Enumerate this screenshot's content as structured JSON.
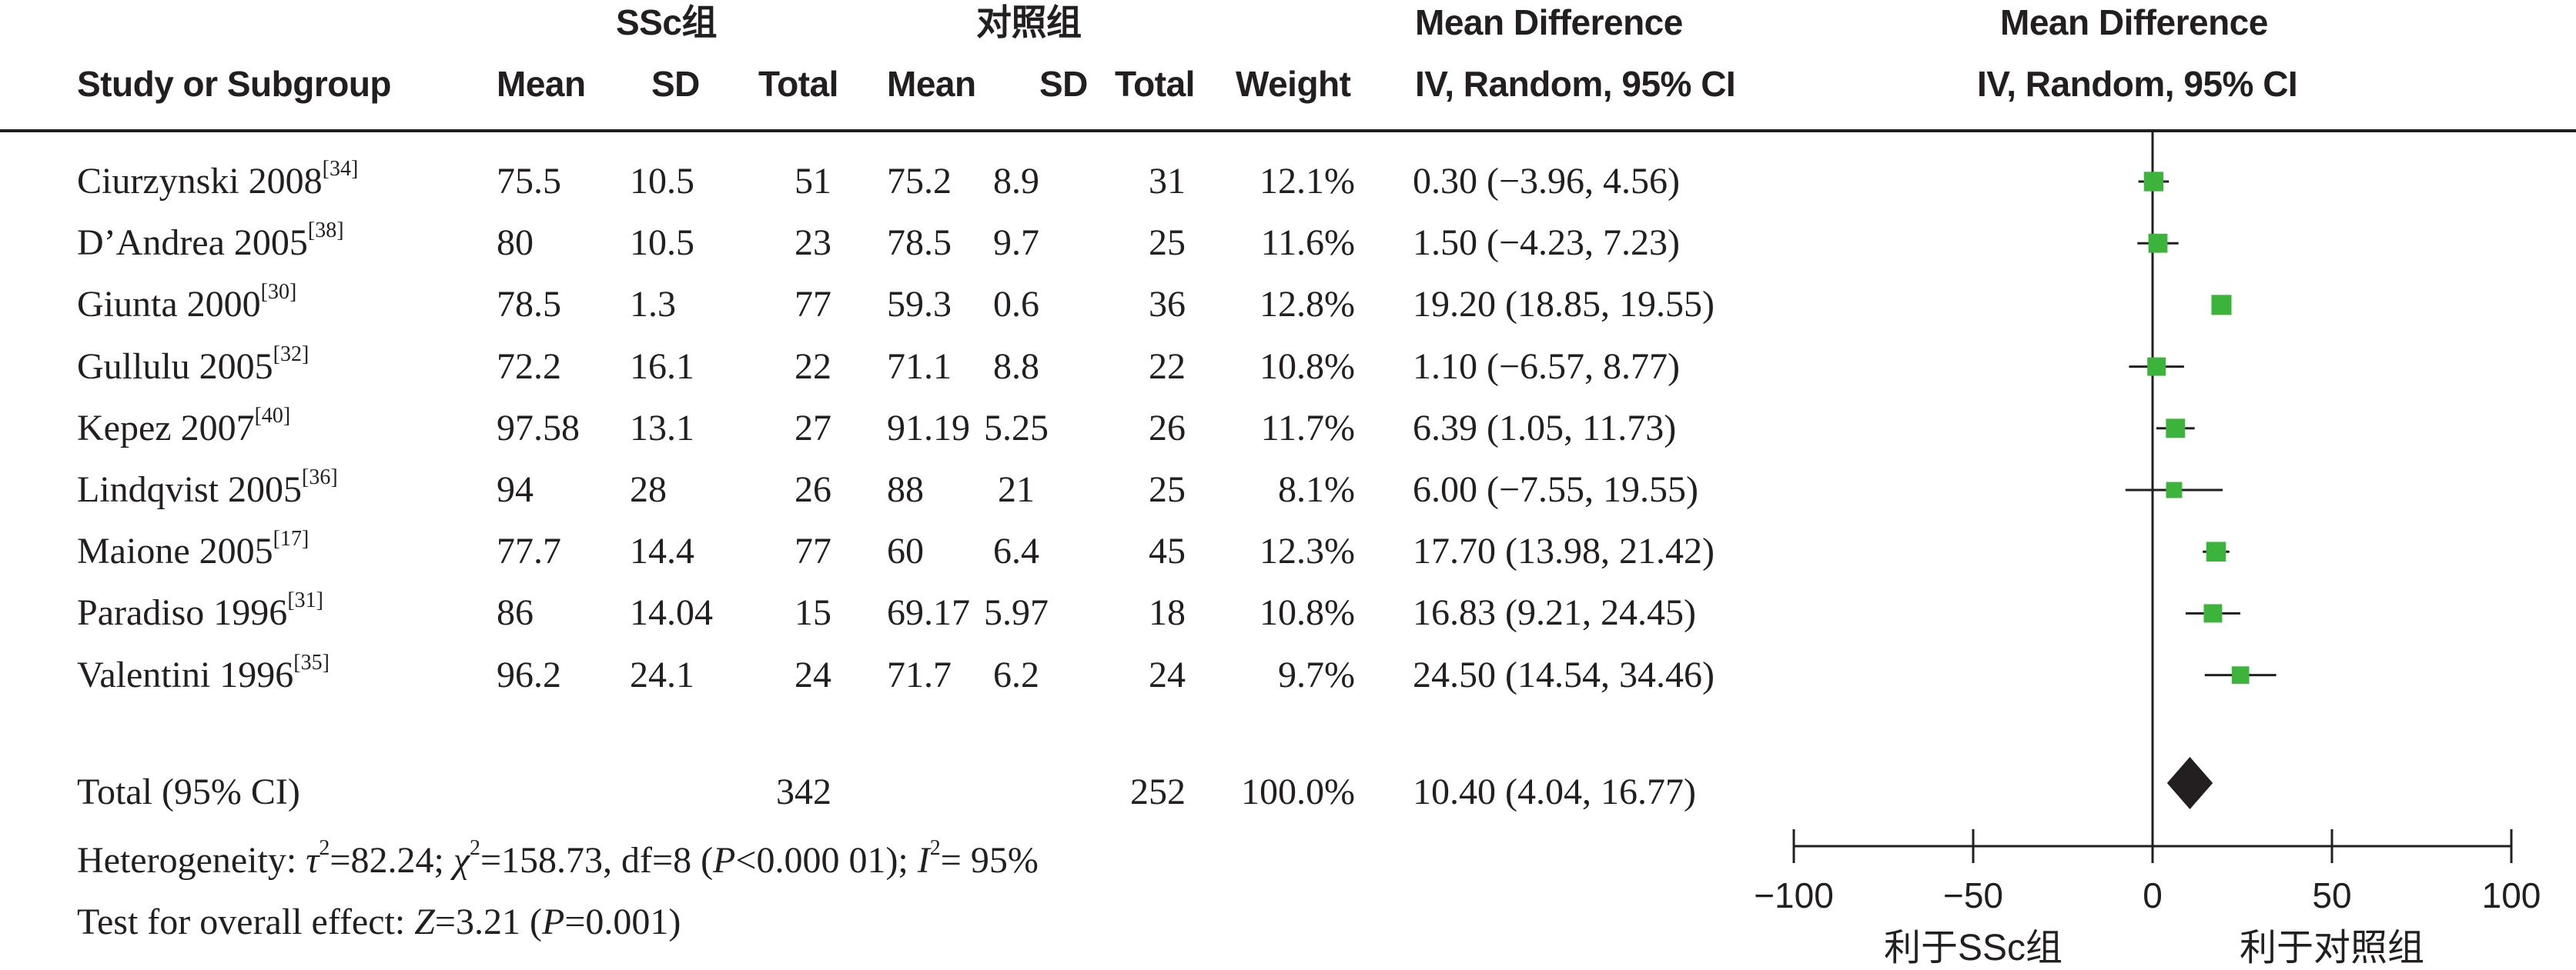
{
  "header": {
    "group1_label": "SSc组",
    "group2_label": "对照组",
    "md_label_table": "Mean Difference",
    "md_label_plot": "Mean Difference",
    "col_study": "Study or Subgroup",
    "col_mean1": "Mean",
    "col_sd1": "SD",
    "col_total1": "Total",
    "col_mean2": "Mean",
    "col_sd2": "SD",
    "col_total2": "Total",
    "col_weight": "Weight",
    "col_ci_table": "IV, Random, 95% CI",
    "col_ci_plot": "IV, Random, 95% CI"
  },
  "rows": [
    {
      "study": "Ciurzynski 2008",
      "ref": "[34]",
      "mean1": "75.5",
      "sd1": "10.5",
      "total1": "51",
      "mean2": "75.2",
      "sd2": "8.9",
      "total2": "31",
      "weight": "12.1%",
      "ci": "0.30 (−3.96, 4.56)"
    },
    {
      "study": "D’Andrea 2005",
      "ref": "[38]",
      "mean1": "80",
      "sd1": "10.5",
      "total1": "23",
      "mean2": "78.5",
      "sd2": "9.7",
      "total2": "25",
      "weight": "11.6%",
      "ci": "1.50 (−4.23, 7.23)"
    },
    {
      "study": "Giunta 2000",
      "ref": "[30]",
      "mean1": "78.5",
      "sd1": "1.3",
      "total1": "77",
      "mean2": "59.3",
      "sd2": "0.6",
      "total2": "36",
      "weight": "12.8%",
      "ci": "19.20 (18.85, 19.55)"
    },
    {
      "study": "Gullulu 2005",
      "ref": "[32]",
      "mean1": "72.2",
      "sd1": "16.1",
      "total1": "22",
      "mean2": "71.1",
      "sd2": "8.8",
      "total2": "22",
      "weight": "10.8%",
      "ci": "1.10 (−6.57, 8.77)"
    },
    {
      "study": "Kepez 2007",
      "ref": "[40]",
      "mean1": "97.58",
      "sd1": "13.1",
      "total1": "27",
      "mean2": "91.19",
      "sd2": "5.25",
      "total2": "26",
      "weight": "11.7%",
      "ci": "6.39 (1.05, 11.73)"
    },
    {
      "study": "Lindqvist 2005",
      "ref": "[36]",
      "mean1": "94",
      "sd1": "28",
      "total1": "26",
      "mean2": "88",
      "sd2": "21",
      "total2": "25",
      "weight": "8.1%",
      "ci": "6.00 (−7.55, 19.55)"
    },
    {
      "study": "Maione 2005",
      "ref": "[17]",
      "mean1": "77.7",
      "sd1": "14.4",
      "total1": "77",
      "mean2": "60",
      "sd2": "6.4",
      "total2": "45",
      "weight": "12.3%",
      "ci": "17.70 (13.98, 21.42)"
    },
    {
      "study": "Paradiso 1996",
      "ref": "[31]",
      "mean1": "86",
      "sd1": "14.04",
      "total1": "15",
      "mean2": "69.17",
      "sd2": "5.97",
      "total2": "18",
      "weight": "10.8%",
      "ci": "16.83 (9.21, 24.45)"
    },
    {
      "study": "Valentini 1996",
      "ref": "[35]",
      "mean1": "96.2",
      "sd1": "24.1",
      "total1": "24",
      "mean2": "71.7",
      "sd2": "6.2",
      "total2": "24",
      "weight": "9.7%",
      "ci": "24.50 (14.54, 34.46)"
    }
  ],
  "total": {
    "label": "Total (95% CI)",
    "total1": "342",
    "total2": "252",
    "weight": "100.0%",
    "ci": "10.40 (4.04, 16.77)"
  },
  "footer": {
    "het_prefix": "Heterogeneity: ",
    "tau_sym": "τ",
    "tau_rest": "=82.24; ",
    "chi_sym": "χ",
    "chi_rest": "=158.73, df=8 (",
    "p_sym": "P",
    "p_rest": "<0.000 01); ",
    "i_sym": "I",
    "i_rest": "= 95%",
    "sup2": "2",
    "effect_prefix": "Test for overall effect: ",
    "z_sym": "Z",
    "z_rest": "=3.21 (",
    "p2_sym": "P",
    "p2_rest": "=0.001)"
  },
  "chart_data": {
    "type": "forest",
    "xlim": [
      -100,
      100
    ],
    "xticks": [
      -100,
      -50,
      0,
      50,
      100
    ],
    "xtick_labels": [
      "−100",
      "−50",
      "0",
      "50",
      "100"
    ],
    "favours_left": "利于SSc组",
    "favours_right": "利于对照组",
    "marker_color": "#3cb43c",
    "diamond_color": "#231f20",
    "studies": [
      {
        "name": "Ciurzynski 2008",
        "md": 0.3,
        "lo": -3.96,
        "hi": 4.56,
        "weight": 12.1
      },
      {
        "name": "D’Andrea 2005",
        "md": 1.5,
        "lo": -4.23,
        "hi": 7.23,
        "weight": 11.6
      },
      {
        "name": "Giunta 2000",
        "md": 19.2,
        "lo": 18.85,
        "hi": 19.55,
        "weight": 12.8
      },
      {
        "name": "Gullulu 2005",
        "md": 1.1,
        "lo": -6.57,
        "hi": 8.77,
        "weight": 10.8
      },
      {
        "name": "Kepez 2007",
        "md": 6.39,
        "lo": 1.05,
        "hi": 11.73,
        "weight": 11.7
      },
      {
        "name": "Lindqvist 2005",
        "md": 6.0,
        "lo": -7.55,
        "hi": 19.55,
        "weight": 8.1
      },
      {
        "name": "Maione 2005",
        "md": 17.7,
        "lo": 13.98,
        "hi": 21.42,
        "weight": 12.3
      },
      {
        "name": "Paradiso 1996",
        "md": 16.83,
        "lo": 9.21,
        "hi": 24.45,
        "weight": 10.8
      },
      {
        "name": "Valentini 1996",
        "md": 24.5,
        "lo": 14.54,
        "hi": 34.46,
        "weight": 9.7
      }
    ],
    "pooled": {
      "md": 10.4,
      "lo": 4.04,
      "hi": 16.77
    }
  }
}
